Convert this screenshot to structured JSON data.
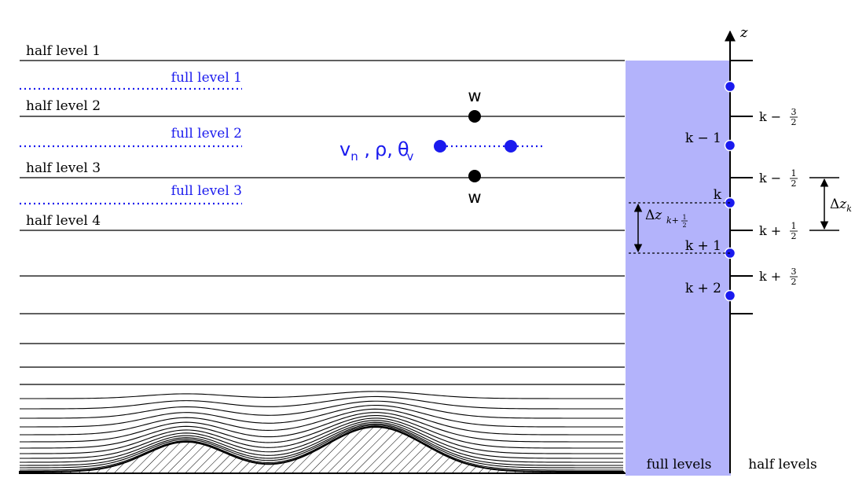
{
  "colors": {
    "blue": "#1a1aee",
    "column_fill": "#b3b3fb",
    "black": "#000000"
  },
  "left_panel": {
    "half_levels": [
      "half level 1",
      "half level 2",
      "half level 3",
      "half level 4"
    ],
    "full_levels": [
      "full level 1",
      "full level 2",
      "full level 3"
    ],
    "w_label": "w",
    "prognostic": {
      "v": "v",
      "v_sub": "n",
      "sep1": " ,",
      "rho": "ρ,",
      "theta": "θ",
      "theta_sub": "v"
    }
  },
  "right_panel": {
    "axis_label": "z",
    "full_index_labels": [
      "k − 1",
      "k",
      "k + 1",
      "k + 2"
    ],
    "half_index_labels": [
      {
        "base": "k − ",
        "num": "3",
        "den": "2"
      },
      {
        "base": "k − ",
        "num": "1",
        "den": "2"
      },
      {
        "base": "k + ",
        "num": "1",
        "den": "2"
      },
      {
        "base": "k + ",
        "num": "3",
        "den": "2"
      }
    ],
    "delta_half": {
      "prefix": "Δ",
      "var": "z",
      "sub": "k+",
      "num": "1",
      "den": "2"
    },
    "delta_full": {
      "prefix": "Δ",
      "var": "z",
      "sub": "k"
    },
    "bottom_labels": {
      "full": "full levels",
      "half": "half levels"
    }
  }
}
